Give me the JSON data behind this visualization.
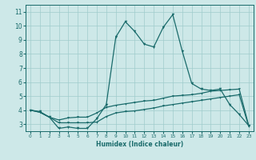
{
  "xlabel": "Humidex (Indice chaleur)",
  "bg_color": "#cde8e8",
  "grid_color": "#a0cccc",
  "line_color": "#1a6b6b",
  "xlim": [
    -0.5,
    23.5
  ],
  "ylim": [
    2.5,
    11.5
  ],
  "xticks": [
    0,
    1,
    2,
    3,
    4,
    5,
    6,
    7,
    8,
    9,
    10,
    11,
    12,
    13,
    14,
    15,
    16,
    17,
    18,
    19,
    20,
    21,
    22,
    23
  ],
  "yticks": [
    3,
    4,
    5,
    6,
    7,
    8,
    9,
    10,
    11
  ],
  "line1_x": [
    0,
    1,
    2,
    3,
    4,
    5,
    6,
    7,
    8,
    9,
    10,
    11,
    12,
    13,
    14,
    15,
    16,
    17,
    18,
    19,
    20,
    21,
    22,
    23
  ],
  "line1_y": [
    4.0,
    3.9,
    3.5,
    2.7,
    2.8,
    2.7,
    2.7,
    3.4,
    4.4,
    9.2,
    10.3,
    9.6,
    8.7,
    8.5,
    9.9,
    10.8,
    8.2,
    5.9,
    5.5,
    5.4,
    5.5,
    4.4,
    3.7,
    2.9
  ],
  "line2_x": [
    0,
    1,
    2,
    3,
    4,
    5,
    6,
    7,
    8,
    9,
    10,
    11,
    12,
    13,
    14,
    15,
    16,
    17,
    18,
    19,
    20,
    21,
    22,
    23
  ],
  "line2_y": [
    4.0,
    3.85,
    3.5,
    3.3,
    3.45,
    3.5,
    3.5,
    3.8,
    4.2,
    4.35,
    4.45,
    4.55,
    4.65,
    4.7,
    4.85,
    5.0,
    5.05,
    5.1,
    5.2,
    5.35,
    5.4,
    5.45,
    5.5,
    2.9
  ],
  "line3_x": [
    0,
    1,
    2,
    3,
    4,
    5,
    6,
    7,
    8,
    9,
    10,
    11,
    12,
    13,
    14,
    15,
    16,
    17,
    18,
    19,
    20,
    21,
    22,
    23
  ],
  "line3_y": [
    4.0,
    3.85,
    3.5,
    3.1,
    3.1,
    3.1,
    3.1,
    3.15,
    3.55,
    3.8,
    3.9,
    3.95,
    4.05,
    4.15,
    4.3,
    4.4,
    4.5,
    4.6,
    4.7,
    4.8,
    4.9,
    5.0,
    5.1,
    2.85
  ]
}
